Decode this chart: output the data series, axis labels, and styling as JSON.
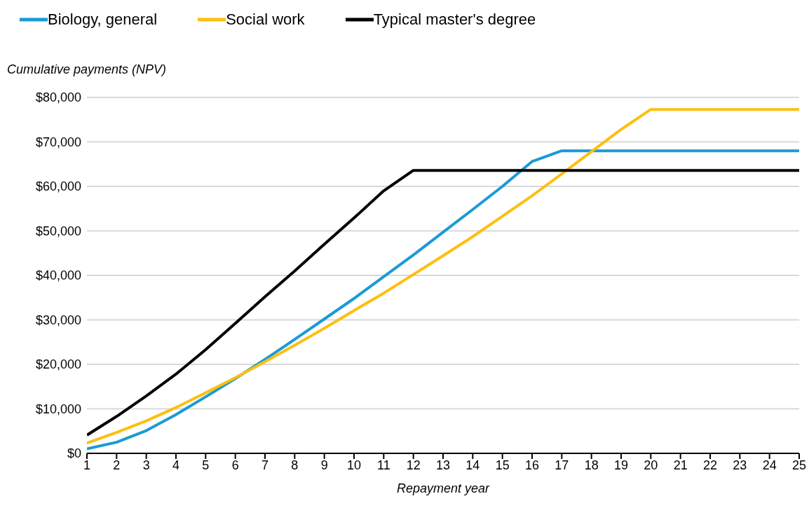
{
  "chart_data": {
    "type": "line",
    "ylabel": "Cumulative payments (NPV)",
    "xlabel": "Repayment year",
    "x": [
      1,
      2,
      3,
      4,
      5,
      6,
      7,
      8,
      9,
      10,
      11,
      12,
      13,
      14,
      15,
      16,
      17,
      18,
      19,
      20,
      21,
      22,
      23,
      24,
      25
    ],
    "xlim": [
      1,
      25
    ],
    "xticks": [
      1,
      2,
      3,
      4,
      5,
      6,
      7,
      8,
      9,
      10,
      11,
      12,
      13,
      14,
      15,
      16,
      17,
      18,
      19,
      20,
      21,
      22,
      23,
      24,
      25
    ],
    "ylim": [
      0,
      80000
    ],
    "yticks": [
      {
        "value": 0,
        "label": "$0"
      },
      {
        "value": 10000,
        "label": "$10,000"
      },
      {
        "value": 20000,
        "label": "$20,000"
      },
      {
        "value": 30000,
        "label": "$30,000"
      },
      {
        "value": 40000,
        "label": "$40,000"
      },
      {
        "value": 50000,
        "label": "$50,000"
      },
      {
        "value": 60000,
        "label": "$60,000"
      },
      {
        "value": 70000,
        "label": "$70,000"
      },
      {
        "value": 80000,
        "label": "$80,000"
      }
    ],
    "grid": "y",
    "legend": "top",
    "marker": "none",
    "line_style": "solid",
    "series": [
      {
        "name": "Biology, general",
        "color": "#1b9ad6",
        "values": [
          1000,
          2500,
          5100,
          8700,
          12700,
          16800,
          21100,
          25600,
          30200,
          34800,
          39700,
          44600,
          49700,
          54800,
          60000,
          65600,
          68000,
          68000,
          68000,
          68000,
          68000,
          68000,
          68000,
          68000,
          68000
        ]
      },
      {
        "name": "Social work",
        "color": "#fdbf11",
        "values": [
          2300,
          4700,
          7300,
          10300,
          13600,
          17000,
          20600,
          24300,
          28100,
          32100,
          36000,
          40200,
          44400,
          48700,
          53300,
          57900,
          62800,
          67800,
          72800,
          77300,
          77300,
          77300,
          77300,
          77300,
          77300
        ]
      },
      {
        "name": "Typical master's degree",
        "color": "#000000",
        "values": [
          4100,
          8300,
          12900,
          17800,
          23300,
          29200,
          35200,
          41000,
          47000,
          52900,
          59000,
          63600,
          63600,
          63600,
          63600,
          63600,
          63600,
          63600,
          63600,
          63600,
          63600,
          63600,
          63600,
          63600,
          63600
        ]
      }
    ]
  }
}
